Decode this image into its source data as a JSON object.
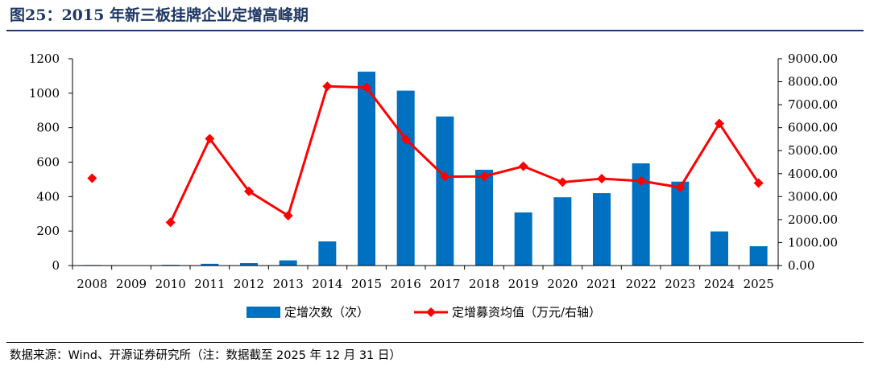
{
  "header": {
    "title": "图25：2015 年新三板挂牌企业定增高峰期"
  },
  "footer": {
    "source": "数据来源：Wind、开源证券研究所（注：数据截至 2025 年 12 月 31 日）"
  },
  "colors": {
    "bar": "#0070c0",
    "line": "#ff0000",
    "title": "#1f3864",
    "axis": "#000000"
  },
  "chart_data": {
    "type": "bar",
    "categories": [
      "2008",
      "2009",
      "2010",
      "2011",
      "2012",
      "2013",
      "2014",
      "2015",
      "2016",
      "2017",
      "2018",
      "2019",
      "2020",
      "2021",
      "2022",
      "2023",
      "2024",
      "2025"
    ],
    "series": [
      {
        "name": "定增次数（次）",
        "type": "bar",
        "axis": "left",
        "values": [
          3,
          0,
          4,
          10,
          14,
          30,
          140,
          1125,
          1015,
          865,
          556,
          308,
          396,
          420,
          593,
          487,
          198,
          112
        ]
      },
      {
        "name": "定增募资均值（万元/右轴）",
        "type": "line",
        "axis": "right",
        "values": [
          3800,
          null,
          1880,
          5520,
          3230,
          2170,
          7800,
          7750,
          5500,
          3870,
          3880,
          4320,
          3630,
          3780,
          3680,
          3400,
          6180,
          3590
        ]
      }
    ],
    "left_axis": {
      "min": 0,
      "max": 1200,
      "ticks": [
        "0",
        "200",
        "400",
        "600",
        "800",
        "1000",
        "1200"
      ]
    },
    "right_axis": {
      "min": 0,
      "max": 9000,
      "ticks": [
        "0.00",
        "1000.00",
        "2000.00",
        "3000.00",
        "4000.00",
        "5000.00",
        "6000.00",
        "7000.00",
        "8000.00",
        "9000.00"
      ]
    },
    "legend": [
      "定增次数（次）",
      "定增募资均值（万元/右轴）"
    ],
    "legend_position": "bottom",
    "grid": false
  }
}
